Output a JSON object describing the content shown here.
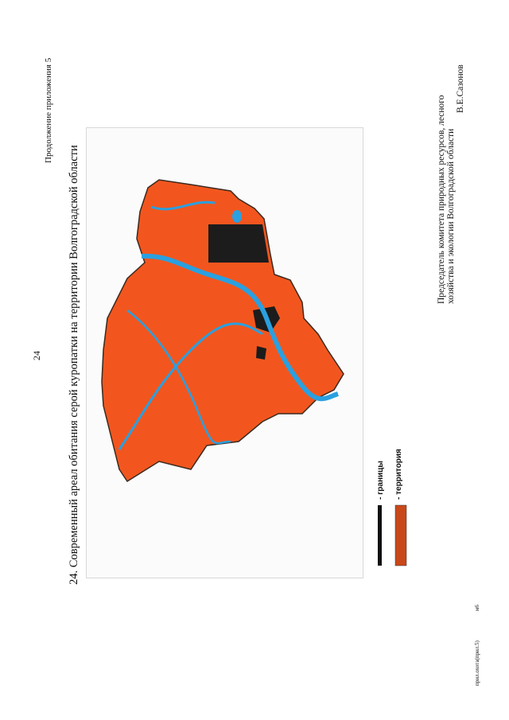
{
  "header": {
    "continuation": "Продолжение приложения 5",
    "page_number": "24"
  },
  "figure": {
    "caption": "24. Современный ареал обитания серой куропатки на территории Волгоградской области"
  },
  "legend": {
    "items": [
      "- границы",
      "- территория"
    ]
  },
  "signature": {
    "line1": "Председатель  комитета  природных  ресурсов,  лесного",
    "line2": "хозяйства и экологии Волгоградской области",
    "name": "В.Е.Сазонов"
  },
  "footer": {
    "file": "прил.охота(прил.5)",
    "code": "м6"
  }
}
